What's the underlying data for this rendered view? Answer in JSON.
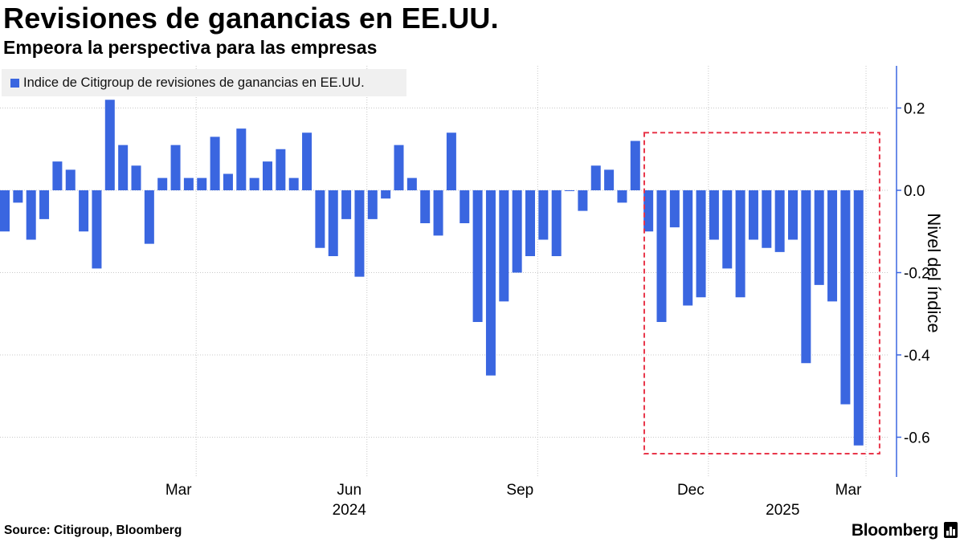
{
  "header": {
    "title": "Revisiones de ganancias en EE.UU.",
    "subtitle": "Empeora la perspectiva para las empresas"
  },
  "footer": {
    "source": "Source: Citigroup, Bloomberg",
    "brand": "Bloomberg"
  },
  "colors": {
    "bar": "#3a66e0",
    "highlight_box": "#e8364a",
    "axis": "#3a66e0",
    "grid": "#c8c8c8"
  },
  "chart_data": {
    "type": "bar",
    "title": "Revisiones de ganancias en EE.UU.",
    "subtitle": "Empeora la perspectiva para las empresas",
    "ylabel": "Nivel del índice",
    "xlabel": "",
    "ylim": [
      -0.7,
      0.3
    ],
    "yticks": [
      0.2,
      0.0,
      -0.2,
      -0.4,
      -0.6
    ],
    "ytick_labels": [
      "0.2",
      "0.0",
      "-0.2",
      "-0.4",
      "-0.6"
    ],
    "y_axis_side": "right",
    "legend": {
      "position": "top-left",
      "entries": [
        "Indice de Citigroup de revisiones de ganancias en EE.UU."
      ]
    },
    "month_ticks": [
      {
        "label": "Mar",
        "bar_index": 12
      },
      {
        "label": "Jun",
        "bar_index": 25
      },
      {
        "label": "Sep",
        "bar_index": 38
      },
      {
        "label": "Dec",
        "bar_index": 51
      },
      {
        "label": "Mar",
        "bar_index": 63
      }
    ],
    "year_labels": [
      {
        "label": "2024",
        "bar_index": 25
      },
      {
        "label": "2025",
        "bar_index": 58
      }
    ],
    "highlight_region": {
      "from_bar_index": 48.5,
      "to_bar_index": 66.6,
      "y_top": 0.14,
      "y_bottom": -0.64
    },
    "series": [
      {
        "name": "Indice de Citigroup de revisiones de ganancias en EE.UU.",
        "values": [
          -0.1,
          -0.03,
          -0.12,
          -0.07,
          0.07,
          0.05,
          -0.1,
          -0.19,
          0.22,
          0.11,
          0.06,
          -0.13,
          0.03,
          0.11,
          0.03,
          0.03,
          0.13,
          0.04,
          0.15,
          0.03,
          0.07,
          0.1,
          0.03,
          0.14,
          -0.14,
          -0.16,
          -0.07,
          -0.21,
          -0.07,
          -0.02,
          0.11,
          0.03,
          -0.08,
          -0.11,
          0.14,
          -0.08,
          -0.32,
          -0.45,
          -0.27,
          -0.2,
          -0.16,
          -0.12,
          -0.16,
          0.0,
          -0.05,
          0.06,
          0.05,
          -0.03,
          0.12,
          -0.1,
          -0.32,
          -0.09,
          -0.28,
          -0.26,
          -0.12,
          -0.19,
          -0.26,
          -0.12,
          -0.14,
          -0.15,
          -0.12,
          -0.42,
          -0.23,
          -0.27,
          -0.52,
          -0.62
        ]
      }
    ]
  }
}
